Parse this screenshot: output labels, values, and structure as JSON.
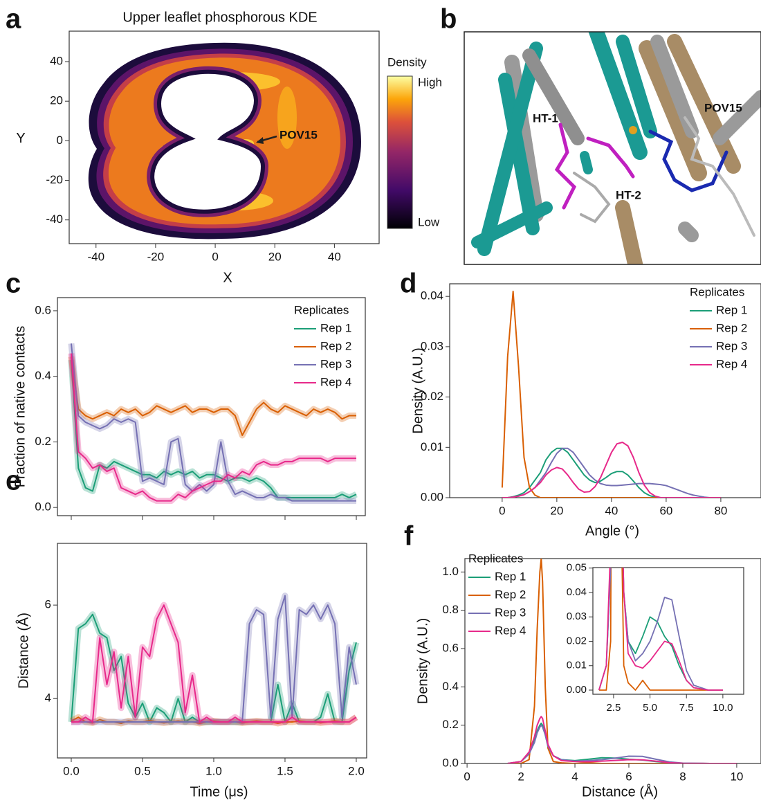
{
  "chart_data": [
    {
      "type": "kde",
      "panel": "a",
      "title": "Upper leaflet phosphorous KDE",
      "xlabel": "X",
      "ylabel": "Y",
      "xlim": [
        -49,
        55
      ],
      "ylim": [
        -52,
        55.4
      ],
      "xticks": [
        -40,
        -20,
        0,
        20,
        40
      ],
      "yticks": [
        -40,
        -20,
        0,
        20,
        40
      ],
      "colorbar_label": "Density",
      "colorbar_high": "High",
      "colorbar_low": "Low",
      "annotation": "POV15"
    },
    {
      "type": "image",
      "panel": "b",
      "annotations": [
        "HT-1",
        "HT-2",
        "POV15"
      ]
    },
    {
      "type": "line",
      "panel": "c",
      "ylabel": "Fraction of native contacts",
      "xlim": [
        -0.097,
        2.063
      ],
      "ylim": [
        -0.025,
        0.64
      ],
      "xticks": [
        0,
        0.5,
        1,
        1.5,
        2
      ],
      "xtick_labels": false,
      "yticks": [
        {
          "value": 0,
          "label": "0.0"
        },
        0.2,
        0.4,
        0.6
      ],
      "legend": "upper right",
      "legend_title": "Replicates",
      "band": true,
      "x": [
        0,
        0.05,
        0.1,
        0.15,
        0.2,
        0.25,
        0.3,
        0.35,
        0.4,
        0.45,
        0.5,
        0.55,
        0.6,
        0.65,
        0.7,
        0.75,
        0.8,
        0.85,
        0.9,
        0.95,
        1,
        1.05,
        1.1,
        1.15,
        1.2,
        1.25,
        1.3,
        1.35,
        1.4,
        1.45,
        1.5,
        1.55,
        1.6,
        1.65,
        1.7,
        1.75,
        1.8,
        1.85,
        1.9,
        1.95,
        2
      ],
      "series": [
        {
          "name": "Rep 1",
          "color": "#1b9e77",
          "values": [
            0.45,
            0.12,
            0.06,
            0.05,
            0.13,
            0.12,
            0.14,
            0.13,
            0.12,
            0.11,
            0.1,
            0.1,
            0.09,
            0.11,
            0.1,
            0.11,
            0.1,
            0.11,
            0.09,
            0.1,
            0.1,
            0.09,
            0.08,
            0.09,
            0.09,
            0.08,
            0.09,
            0.08,
            0.06,
            0.03,
            0.03,
            0.03,
            0.03,
            0.03,
            0.03,
            0.03,
            0.03,
            0.03,
            0.04,
            0.03,
            0.04
          ]
        },
        {
          "name": "Rep 2",
          "color": "#d95f02",
          "values": [
            0.46,
            0.3,
            0.28,
            0.27,
            0.28,
            0.29,
            0.28,
            0.3,
            0.29,
            0.3,
            0.28,
            0.29,
            0.31,
            0.3,
            0.29,
            0.3,
            0.31,
            0.29,
            0.3,
            0.3,
            0.29,
            0.3,
            0.3,
            0.28,
            0.22,
            0.26,
            0.3,
            0.32,
            0.3,
            0.29,
            0.31,
            0.3,
            0.29,
            0.28,
            0.3,
            0.29,
            0.3,
            0.29,
            0.27,
            0.28,
            0.28
          ]
        },
        {
          "name": "Rep 3",
          "color": "#7570b3",
          "values": [
            0.5,
            0.28,
            0.26,
            0.25,
            0.24,
            0.25,
            0.27,
            0.26,
            0.27,
            0.26,
            0.08,
            0.09,
            0.08,
            0.07,
            0.2,
            0.21,
            0.07,
            0.05,
            0.07,
            0.05,
            0.07,
            0.2,
            0.08,
            0.04,
            0.05,
            0.04,
            0.03,
            0.03,
            0.04,
            0.03,
            0.03,
            0.02,
            0.02,
            0.02,
            0.02,
            0.02,
            0.02,
            0.02,
            0.02,
            0.02,
            0.02
          ]
        },
        {
          "name": "Rep 4",
          "color": "#e7298a",
          "values": [
            0.47,
            0.17,
            0.15,
            0.12,
            0.13,
            0.11,
            0.12,
            0.06,
            0.05,
            0.04,
            0.05,
            0.03,
            0.02,
            0.02,
            0.02,
            0.04,
            0.03,
            0.05,
            0.06,
            0.07,
            0.08,
            0.08,
            0.1,
            0.09,
            0.11,
            0.1,
            0.13,
            0.14,
            0.13,
            0.13,
            0.14,
            0.14,
            0.15,
            0.15,
            0.15,
            0.15,
            0.14,
            0.15,
            0.15,
            0.15,
            0.15
          ]
        }
      ]
    },
    {
      "type": "line",
      "panel": "d",
      "xlabel": "Angle (°)",
      "ylabel": "Density (A.U.)",
      "xlim": [
        -19.2,
        94.7
      ],
      "ylim": [
        0,
        0.0425
      ],
      "xticks": [
        0,
        20,
        40,
        60,
        80
      ],
      "yticks": [
        {
          "value": 0,
          "label": "0.00"
        },
        0.01,
        0.02,
        0.03,
        0.04
      ],
      "legend": "upper right",
      "legend_title": "Replicates",
      "x": [
        0,
        2,
        4,
        6,
        8,
        10,
        12,
        14,
        16,
        18,
        20,
        22,
        24,
        26,
        28,
        30,
        32,
        34,
        36,
        38,
        40,
        42,
        44,
        46,
        48,
        50,
        52,
        54,
        56,
        58,
        60,
        62,
        64,
        66,
        68,
        70,
        72,
        74,
        76,
        78,
        80
      ],
      "series": [
        {
          "name": "Rep 1",
          "color": "#1b9e77",
          "values": [
            0,
            0,
            0.0002,
            0.0005,
            0.001,
            0.002,
            0.0035,
            0.005,
            0.0075,
            0.009,
            0.0098,
            0.0098,
            0.009,
            0.0075,
            0.006,
            0.0045,
            0.0035,
            0.003,
            0.0033,
            0.004,
            0.0048,
            0.0052,
            0.0052,
            0.0045,
            0.0033,
            0.002,
            0.001,
            0.0004,
            0.0001,
            0,
            0,
            0,
            0,
            0,
            0,
            0,
            0,
            0,
            0,
            0,
            0
          ]
        },
        {
          "name": "Rep 2",
          "color": "#d95f02",
          "values": [
            0.002,
            0.028,
            0.041,
            0.026,
            0.008,
            0.002,
            0.0005,
            0,
            0,
            0,
            0,
            0,
            0,
            0,
            0,
            0,
            0,
            0,
            0,
            0,
            0,
            0,
            0,
            0,
            0,
            0,
            0,
            0,
            0,
            0,
            0,
            0,
            0,
            0,
            0,
            0,
            0,
            0,
            0,
            0,
            0
          ]
        },
        {
          "name": "Rep 3",
          "color": "#7570b3",
          "values": [
            0,
            0,
            0.0001,
            0.0003,
            0.0006,
            0.0012,
            0.002,
            0.0035,
            0.005,
            0.007,
            0.0088,
            0.0098,
            0.0098,
            0.009,
            0.0075,
            0.006,
            0.0045,
            0.0035,
            0.0028,
            0.0025,
            0.0024,
            0.0024,
            0.0025,
            0.0026,
            0.0027,
            0.0028,
            0.0028,
            0.0028,
            0.0027,
            0.0026,
            0.0024,
            0.002,
            0.0016,
            0.0012,
            0.0008,
            0.0005,
            0.0003,
            0.0001,
            0,
            0,
            0
          ]
        },
        {
          "name": "Rep 4",
          "color": "#e7298a",
          "values": [
            0,
            0,
            0.0001,
            0.0003,
            0.0006,
            0.0012,
            0.002,
            0.003,
            0.0045,
            0.0055,
            0.006,
            0.0057,
            0.0045,
            0.003,
            0.0017,
            0.0011,
            0.0012,
            0.0022,
            0.004,
            0.0065,
            0.009,
            0.0107,
            0.011,
            0.0103,
            0.008,
            0.005,
            0.0025,
            0.001,
            0.0003,
            0,
            0,
            0,
            0,
            0,
            0,
            0,
            0,
            0,
            0,
            0,
            0
          ]
        }
      ]
    },
    {
      "type": "line",
      "panel": "e",
      "xlabel": "Time (μs)",
      "ylabel": "Distance (Å)",
      "xlim": [
        -0.097,
        2.073
      ],
      "ylim": [
        2.73,
        7.32
      ],
      "xticks": [
        {
          "value": 0,
          "label": "0.0"
        },
        0.5,
        {
          "value": 1,
          "label": "1.0"
        },
        1.5,
        {
          "value": 2,
          "label": "2.0"
        }
      ],
      "yticks": [
        4,
        6
      ],
      "band": true,
      "x": [
        0,
        0.05,
        0.1,
        0.15,
        0.2,
        0.25,
        0.3,
        0.35,
        0.4,
        0.45,
        0.5,
        0.55,
        0.6,
        0.65,
        0.7,
        0.75,
        0.8,
        0.85,
        0.9,
        0.95,
        1,
        1.05,
        1.1,
        1.15,
        1.2,
        1.25,
        1.3,
        1.35,
        1.4,
        1.45,
        1.5,
        1.55,
        1.6,
        1.65,
        1.7,
        1.75,
        1.8,
        1.85,
        1.9,
        1.95,
        2
      ],
      "series": [
        {
          "color": "#1b9e77",
          "values": [
            3.5,
            5.5,
            5.6,
            5.8,
            5.4,
            5.3,
            4.6,
            4.9,
            3.9,
            3.6,
            3.9,
            3.5,
            3.8,
            3.7,
            3.5,
            4,
            3.5,
            3.6,
            3.5,
            3.5,
            3.5,
            3.5,
            3.5,
            3.5,
            3.5,
            3.5,
            3.5,
            3.5,
            3.5,
            4.3,
            3.5,
            3.9,
            3.5,
            3.5,
            3.5,
            3.6,
            4.1,
            3.5,
            3.5,
            4.6,
            5.2
          ]
        },
        {
          "color": "#d95f02",
          "values": [
            3.52,
            3.6,
            3.5,
            3.48,
            3.55,
            3.5,
            3.5,
            3.47,
            3.52,
            3.5,
            3.5,
            3.53,
            3.5,
            3.48,
            3.5,
            3.52,
            3.5,
            3.5,
            3.47,
            3.5,
            3.52,
            3.5,
            3.5,
            3.5,
            3.48,
            3.5,
            3.52,
            3.5,
            3.5,
            3.47,
            3.5,
            3.5,
            3.52,
            3.5,
            3.5,
            3.48,
            3.5,
            3.52,
            3.5,
            3.5,
            3.6
          ]
        },
        {
          "color": "#7570b3",
          "values": [
            3.5,
            3.5,
            3.5,
            3.5,
            3.5,
            3.5,
            3.5,
            3.5,
            3.5,
            3.5,
            3.5,
            3.5,
            3.5,
            3.5,
            3.5,
            3.5,
            3.5,
            3.5,
            3.5,
            3.5,
            3.5,
            3.5,
            3.5,
            3.5,
            3.5,
            5.6,
            5.9,
            5.8,
            3.6,
            5.7,
            6.2,
            3.6,
            5.9,
            5.8,
            6,
            5.7,
            6,
            5.6,
            3.6,
            5.1,
            4.3
          ]
        },
        {
          "color": "#e7298a",
          "values": [
            3.5,
            3.5,
            3.6,
            3.5,
            5.3,
            4.3,
            5,
            3.8,
            4.9,
            3.6,
            5.1,
            4.9,
            5.7,
            6,
            5.6,
            5.2,
            3.7,
            4.5,
            3.5,
            3.6,
            3.5,
            3.5,
            3.5,
            3.6,
            3.5,
            3.5,
            3.5,
            3.5,
            3.5,
            3.5,
            3.5,
            3.6,
            3.5,
            3.5,
            3.5,
            3.5,
            3.5,
            3.5,
            3.5,
            3.5,
            3.6
          ]
        }
      ]
    },
    {
      "type": "line",
      "panel": "f",
      "xlabel": "Distance (Å)",
      "ylabel": "Density (A.U.)",
      "xlim": [
        -0.08,
        10.9
      ],
      "ylim": [
        0,
        1.07
      ],
      "xticks": [
        0,
        2,
        4,
        6,
        8,
        10
      ],
      "yticks": [
        {
          "value": 0,
          "label": "0.0"
        },
        0.2,
        0.4,
        0.6,
        0.8,
        {
          "value": 1,
          "label": "1.0"
        }
      ],
      "legend": "upper left",
      "legend_title": "Replicates",
      "inset": {
        "xlim": [
          1.08,
          11.43
        ],
        "ylim": [
          -0.0017,
          0.0502
        ],
        "xticks": [
          2.5,
          {
            "value": 5,
            "label": "5.0"
          },
          7.5,
          {
            "value": 10,
            "label": "10.0"
          }
        ],
        "yticks": [
          {
            "value": 0,
            "label": "0.00"
          },
          0.01,
          0.02,
          0.03,
          0.04,
          0.05
        ]
      },
      "x": [
        1.5,
        2,
        2.3,
        2.5,
        2.6,
        2.7,
        2.75,
        2.8,
        2.9,
        3,
        3.2,
        3.5,
        4,
        4.5,
        5,
        5.5,
        6,
        6.5,
        7,
        7.5,
        8,
        9,
        10
      ],
      "series": [
        {
          "name": "Rep 1",
          "color": "#1b9e77",
          "values": [
            0,
            0.01,
            0.05,
            0.12,
            0.17,
            0.2,
            0.21,
            0.2,
            0.15,
            0.09,
            0.04,
            0.02,
            0.015,
            0.022,
            0.03,
            0.028,
            0.022,
            0.018,
            0.01,
            0.004,
            0.001,
            0,
            0
          ]
        },
        {
          "name": "Rep 2",
          "color": "#d95f02",
          "values": [
            0,
            0,
            0.02,
            0.3,
            0.7,
            1,
            1.07,
            0.95,
            0.4,
            0.08,
            0.01,
            0.003,
            0,
            0.004,
            0,
            0,
            0,
            0,
            0,
            0,
            0,
            0,
            0
          ]
        },
        {
          "name": "Rep 3",
          "color": "#7570b3",
          "values": [
            0,
            0.01,
            0.05,
            0.11,
            0.16,
            0.19,
            0.2,
            0.19,
            0.15,
            0.09,
            0.04,
            0.02,
            0.012,
            0.015,
            0.02,
            0.028,
            0.038,
            0.037,
            0.022,
            0.008,
            0.002,
            0,
            0
          ]
        },
        {
          "name": "Rep 4",
          "color": "#e7298a",
          "values": [
            0,
            0.01,
            0.06,
            0.14,
            0.2,
            0.235,
            0.245,
            0.235,
            0.17,
            0.1,
            0.04,
            0.015,
            0.01,
            0.009,
            0.012,
            0.016,
            0.02,
            0.019,
            0.012,
            0.004,
            0.001,
            0,
            0
          ]
        }
      ]
    }
  ]
}
